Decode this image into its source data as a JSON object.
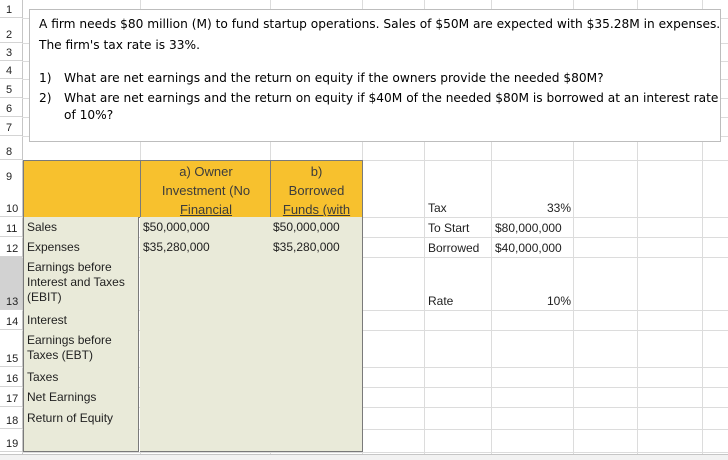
{
  "rows": [
    "1",
    "2",
    "3",
    "4",
    "5",
    "6",
    "7",
    "8",
    "9",
    "10",
    "11",
    "12",
    "13",
    "14",
    "15",
    "16",
    "17",
    "18",
    "19"
  ],
  "problem": {
    "line1": "A firm needs $80 million (M) to fund startup operations. Sales of $50M are expected with $35.28M in expenses.",
    "line2": "The firm's tax rate is 33%.",
    "q1_num": "1)",
    "q1_text": "What are net earnings and the return on equity if the owners provide the needed $80M?",
    "q2_num": "2)",
    "q2_text_a": "What are net earnings and the return on equity if $40M of the needed $80M is borrowed at an interest rate",
    "q2_text_b": "of 10%?"
  },
  "headers": {
    "col_a": [
      "a) Owner",
      "Investment (No",
      "Financial"
    ],
    "col_b": [
      "b)",
      "Borrowed",
      "Funds (with"
    ]
  },
  "table": {
    "sales": {
      "label": "Sales",
      "a": "$50,000,000",
      "b": "$50,000,000"
    },
    "expenses": {
      "label": "Expenses",
      "a": "$35,280,000",
      "b": "$35,280,000"
    },
    "ebit": {
      "label": [
        "Earnings before",
        "Interest and Taxes",
        "(EBIT)"
      ]
    },
    "interest": {
      "label": "Interest"
    },
    "ebt": {
      "label": [
        "Earnings before",
        "Taxes (EBT)"
      ]
    },
    "taxes": {
      "label": "Taxes"
    },
    "net": {
      "label": "Net Earnings"
    },
    "roe": {
      "label": "Return of Equity"
    }
  },
  "side": {
    "tax_label": "Tax",
    "tax_value": "33%",
    "start_label": "To Start",
    "start_value": "$80,000,000",
    "borrowed_label": "Borrowed",
    "borrowed_value": "$40,000,000",
    "rate_label": "Rate",
    "rate_value": "10%"
  }
}
